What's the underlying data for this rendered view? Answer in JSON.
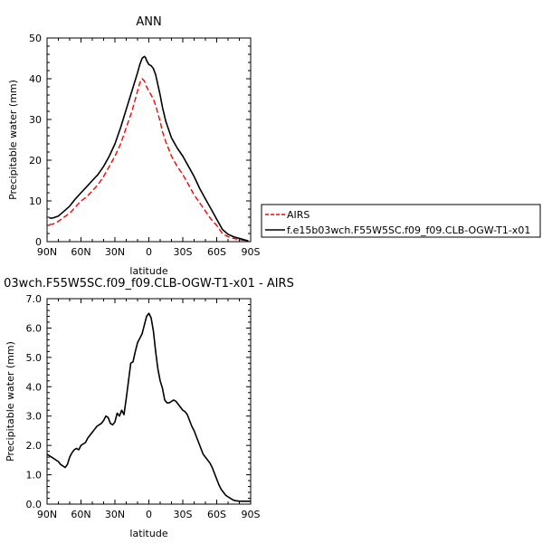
{
  "chart_data": [
    {
      "type": "line",
      "title": "ANN",
      "xlabel": "latitude",
      "ylabel": "Precipitable water (mm)",
      "xlim": [
        90,
        -90
      ],
      "ylim": [
        0,
        50
      ],
      "x_ticks": [
        90,
        60,
        30,
        0,
        -30,
        -60,
        -90
      ],
      "x_tick_labels": [
        "90N",
        "60N",
        "30N",
        "0",
        "30S",
        "60S",
        "90S"
      ],
      "y_ticks": [
        0,
        10,
        20,
        30,
        40,
        50
      ],
      "y_tick_labels": [
        "0",
        "10",
        "20",
        "30",
        "40",
        "50"
      ],
      "legend_position": "right",
      "series": [
        {
          "name": "AIRS",
          "color": "#ff0000",
          "dash": "dashed",
          "x": [
            88,
            85,
            80,
            75,
            70,
            65,
            60,
            55,
            50,
            45,
            40,
            35,
            30,
            25,
            20,
            15,
            10,
            8,
            6,
            4,
            2,
            0,
            -2,
            -4,
            -6,
            -8,
            -10,
            -12,
            -15,
            -20,
            -25,
            -30,
            -35,
            -40,
            -45,
            -50,
            -55,
            -60,
            -65,
            -70,
            -75,
            -80,
            -85,
            -88
          ],
          "y": [
            4.2,
            4.3,
            5.0,
            6.0,
            7.0,
            8.5,
            10.0,
            11.0,
            12.5,
            14.0,
            16.0,
            18.5,
            21.0,
            24.0,
            28.0,
            32.0,
            37.0,
            39.0,
            40.0,
            39.5,
            38.0,
            37.0,
            36.0,
            35.0,
            33.5,
            31.5,
            29.5,
            27.0,
            24.5,
            21.0,
            18.5,
            16.5,
            14.0,
            11.5,
            9.5,
            7.5,
            5.5,
            4.0,
            2.0,
            1.2,
            0.8,
            0.5,
            0.3,
            0.2
          ]
        },
        {
          "name": "f.e15b03wch.F55W5SC.f09_f09.CLB-OGW-T1-x01",
          "color": "#000000",
          "dash": "solid",
          "x": [
            88,
            85,
            80,
            75,
            70,
            65,
            60,
            55,
            50,
            45,
            40,
            35,
            30,
            25,
            20,
            15,
            10,
            8,
            6,
            4,
            3,
            2,
            0,
            -2,
            -4,
            -6,
            -8,
            -10,
            -12,
            -15,
            -20,
            -25,
            -30,
            -35,
            -40,
            -45,
            -50,
            -55,
            -60,
            -65,
            -70,
            -75,
            -80,
            -85,
            -88
          ],
          "y": [
            5.8,
            5.8,
            6.3,
            7.5,
            8.7,
            10.5,
            12.0,
            13.5,
            15.0,
            16.5,
            18.5,
            21.0,
            24.0,
            28.0,
            32.5,
            37.0,
            41.5,
            43.5,
            45.0,
            45.5,
            45.2,
            44.5,
            43.5,
            43.2,
            42.5,
            41.0,
            38.5,
            36.0,
            33.0,
            29.5,
            25.5,
            23.0,
            21.0,
            18.5,
            16.0,
            13.0,
            10.5,
            8.0,
            5.5,
            3.0,
            1.8,
            1.2,
            0.8,
            0.4,
            0.2
          ]
        }
      ]
    },
    {
      "type": "line",
      "title": "03wch.F55W5SC.f09_f09.CLB-OGW-T1-x01 - AIRS",
      "xlabel": "latitude",
      "ylabel": "Precipitable water (mm)",
      "xlim": [
        90,
        -90
      ],
      "ylim": [
        0,
        7
      ],
      "x_ticks": [
        90,
        60,
        30,
        0,
        -30,
        -60,
        -90
      ],
      "x_tick_labels": [
        "90N",
        "60N",
        "30N",
        "0",
        "30S",
        "60S",
        "90S"
      ],
      "y_ticks": [
        0,
        1,
        2,
        3,
        4,
        5,
        6,
        7
      ],
      "y_tick_labels": [
        "0.0",
        "1.0",
        "2.0",
        "3.0",
        "4.0",
        "5.0",
        "6.0",
        "7.0"
      ],
      "series": [
        {
          "color": "#000000",
          "dash": "solid",
          "x": [
            90,
            88,
            86,
            84,
            82,
            80,
            78,
            76,
            74,
            72,
            70,
            68,
            66,
            64,
            62,
            60,
            58,
            56,
            54,
            52,
            50,
            48,
            46,
            44,
            42,
            40,
            38,
            36,
            34,
            32,
            30,
            28,
            26,
            24,
            22,
            20,
            18,
            16,
            14,
            12,
            10,
            8,
            6,
            4,
            2,
            0,
            -2,
            -4,
            -6,
            -8,
            -10,
            -12,
            -14,
            -16,
            -18,
            -20,
            -22,
            -24,
            -26,
            -28,
            -30,
            -32,
            -34,
            -36,
            -38,
            -40,
            -42,
            -44,
            -46,
            -48,
            -50,
            -52,
            -54,
            -56,
            -58,
            -60,
            -62,
            -64,
            -66,
            -68,
            -70,
            -72,
            -74,
            -76,
            -78,
            -80,
            -82,
            -84,
            -86,
            -88,
            -90
          ],
          "y": [
            1.7,
            1.65,
            1.6,
            1.55,
            1.5,
            1.45,
            1.35,
            1.3,
            1.25,
            1.35,
            1.6,
            1.75,
            1.85,
            1.9,
            1.85,
            2.0,
            2.05,
            2.1,
            2.25,
            2.35,
            2.45,
            2.55,
            2.65,
            2.7,
            2.75,
            2.85,
            3.0,
            2.95,
            2.75,
            2.7,
            2.8,
            3.1,
            3.0,
            3.2,
            3.05,
            3.6,
            4.2,
            4.8,
            4.85,
            5.2,
            5.5,
            5.65,
            5.8,
            6.1,
            6.4,
            6.5,
            6.35,
            5.9,
            5.2,
            4.6,
            4.2,
            3.95,
            3.55,
            3.45,
            3.45,
            3.5,
            3.55,
            3.5,
            3.4,
            3.3,
            3.2,
            3.15,
            3.05,
            2.85,
            2.65,
            2.5,
            2.3,
            2.1,
            1.9,
            1.7,
            1.6,
            1.5,
            1.4,
            1.25,
            1.05,
            0.85,
            0.65,
            0.5,
            0.4,
            0.3,
            0.25,
            0.2,
            0.15,
            0.12,
            0.11,
            0.1,
            0.1,
            0.1,
            0.1,
            0.1,
            0.1
          ]
        }
      ]
    }
  ]
}
